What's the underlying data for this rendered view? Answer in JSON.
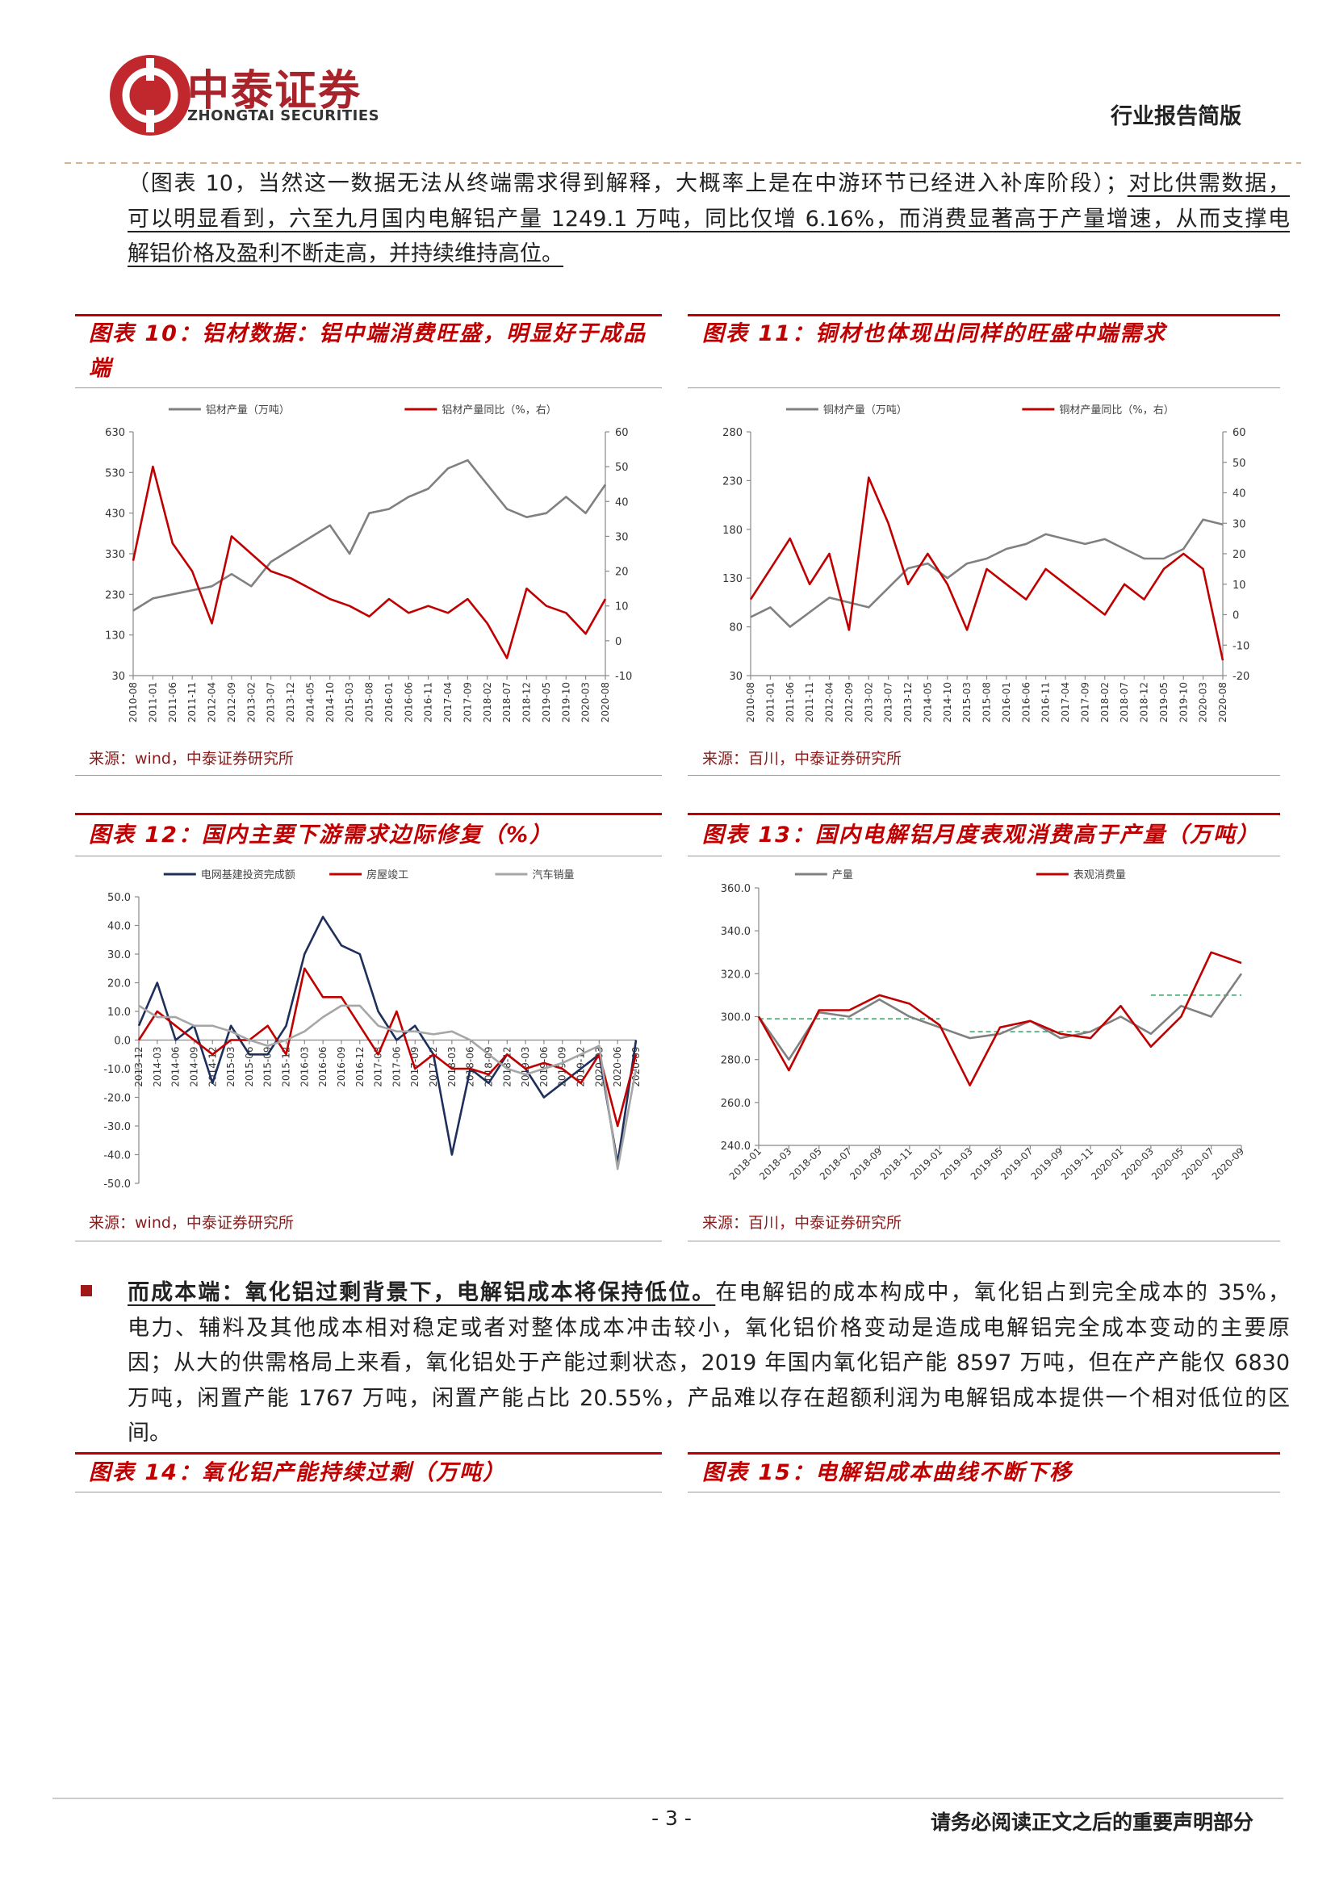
{
  "header": {
    "logo_cn": "中泰证券",
    "logo_en": "ZHONGTAI SECURITIES",
    "doc_type": "行业报告简版"
  },
  "paragraphs": [
    {
      "lines": [
        [
          {
            "text": "（图表 10，当然这一数据无法从终端需求得到解释，大概率上是在中游环节已经进入补库阶段）；"
          },
          {
            "text": "对比供需数据，",
            "underline": true
          }
        ],
        [
          {
            "text": "可以明显看到，六至九月国内电解铝产量 1249.1 万吨，同比仅增 6.16%，而消费显著高于产量增速，从而支撑电",
            "underline": true
          }
        ],
        [
          {
            "text": "解铝价格及盈利不断走高，并持续维持高位。",
            "underline": true
          }
        ]
      ]
    },
    {
      "bullet": true,
      "lines": [
        [
          {
            "text": "而成本端：氧化铝过剩背景下，电解铝成本将保持低位。",
            "bold": true,
            "underline": true
          },
          {
            "text": "在电解铝的成本构成中，氧化铝占到完全成本的 35%，"
          }
        ],
        [
          {
            "text": "电力、辅料及其他成本相对稳定或者对整体成本冲击较小，氧化铝价格变动是造成电解铝完全成本变动的主要原"
          }
        ],
        [
          {
            "text": "因；从大的供需格局上来看，氧化铝处于产能过剩状态，2019 年国内氧化铝产能 8597 万吨，但在产产能仅 6830"
          }
        ],
        [
          {
            "text": "万吨，闲置产能 1767 万吨，闲置产能占比 20.55%，产品难以存在超额利润为电解铝成本提供一个相对低位的区"
          }
        ],
        [
          {
            "text": "间。"
          }
        ]
      ]
    }
  ],
  "figures": [
    {
      "title": "图表 10：铝材数据：铝中端消费旺盛，明显好于成品端",
      "source": "来源：wind，中泰证券研究所",
      "chart": {
        "type": "line",
        "legend": "top",
        "categories": [
          "2010-08",
          "2011-01",
          "2011-06",
          "2011-11",
          "2012-04",
          "2012-09",
          "2013-02",
          "2013-07",
          "2013-12",
          "2014-05",
          "2014-10",
          "2015-03",
          "2015-08",
          "2016-01",
          "2016-06",
          "2016-11",
          "2017-04",
          "2017-09",
          "2018-02",
          "2018-07",
          "2018-12",
          "2019-05",
          "2019-10",
          "2020-03",
          "2020-08"
        ],
        "series": [
          {
            "name": "铝材产量（万吨）",
            "color": "#808080",
            "axis": "y",
            "values": [
              190,
              220,
              230,
              240,
              250,
              280,
              250,
              310,
              340,
              370,
              400,
              330,
              430,
              440,
              470,
              490,
              540,
              560,
              500,
              440,
              420,
              430,
              470,
              430,
              500
            ]
          },
          {
            "name": "铝材产量同比（%，右）",
            "color": "#c00000",
            "axis": "y2",
            "values": [
              23,
              50,
              28,
              20,
              5,
              30,
              25,
              20,
              18,
              15,
              12,
              10,
              7,
              12,
              8,
              10,
              8,
              12,
              5,
              -5,
              15,
              10,
              8,
              2,
              12
            ]
          }
        ],
        "ylim": [
          30,
          630
        ],
        "yticks": [
          30,
          130,
          230,
          330,
          430,
          530,
          630
        ],
        "y2lim": [
          -10,
          60
        ],
        "y2ticks": [
          -10,
          0,
          10,
          20,
          30,
          40,
          50,
          60
        ]
      }
    },
    {
      "title": "图表 11：铜材也体现出同样的旺盛中端需求",
      "source": "来源：百川，中泰证券研究所",
      "chart": {
        "type": "line",
        "legend": "top",
        "categories": [
          "2010-08",
          "2011-01",
          "2011-06",
          "2011-11",
          "2012-04",
          "2012-09",
          "2013-02",
          "2013-07",
          "2013-12",
          "2014-05",
          "2014-10",
          "2015-03",
          "2015-08",
          "2016-01",
          "2016-06",
          "2016-11",
          "2017-04",
          "2017-09",
          "2018-02",
          "2018-07",
          "2018-12",
          "2019-05",
          "2019-10",
          "2020-03",
          "2020-08"
        ],
        "series": [
          {
            "name": "铜材产量（万吨）",
            "color": "#808080",
            "axis": "y",
            "values": [
              90,
              100,
              80,
              95,
              110,
              105,
              100,
              120,
              140,
              145,
              130,
              145,
              150,
              160,
              165,
              175,
              170,
              165,
              170,
              160,
              150,
              150,
              160,
              190,
              185
            ]
          },
          {
            "name": "铜材产量同比（%，右）",
            "color": "#c00000",
            "axis": "y2",
            "values": [
              5,
              15,
              25,
              10,
              20,
              -5,
              45,
              30,
              10,
              20,
              10,
              -5,
              15,
              10,
              5,
              15,
              10,
              5,
              0,
              10,
              5,
              15,
              20,
              15,
              -15
            ]
          }
        ],
        "ylim": [
          30,
          280
        ],
        "yticks": [
          30,
          80,
          130,
          180,
          230,
          280
        ],
        "y2lim": [
          -20,
          60
        ],
        "y2ticks": [
          -20,
          -10,
          0,
          10,
          20,
          30,
          40,
          50,
          60
        ]
      }
    },
    {
      "title": "图表 12：国内主要下游需求边际修复（%）",
      "source": "来源：wind，中泰证券研究所",
      "chart": {
        "type": "line",
        "legend": "top",
        "categories": [
          "2013-12",
          "2014-03",
          "2014-06",
          "2014-09",
          "2014-12",
          "2015-03",
          "2015-06",
          "2015-09",
          "2015-12",
          "2016-03",
          "2016-06",
          "2016-09",
          "2016-12",
          "2017-03",
          "2017-06",
          "2017-09",
          "2017-12",
          "2018-03",
          "2018-06",
          "2018-09",
          "2018-12",
          "2019-03",
          "2019-06",
          "2019-09",
          "2019-12",
          "2020-03",
          "2020-06",
          "2020-09"
        ],
        "series": [
          {
            "name": "电网基建投资完成额",
            "color": "#1f2f5c",
            "axis": "y",
            "values": [
              5,
              20,
              0,
              5,
              -15,
              5,
              -5,
              -5,
              5,
              30,
              43,
              33,
              30,
              10,
              0,
              5,
              -5,
              -40,
              -10,
              -15,
              -5,
              -10,
              -20,
              -15,
              -10,
              -5,
              -43,
              0
            ]
          },
          {
            "name": "房屋竣工",
            "color": "#c00000",
            "axis": "y",
            "values": [
              0,
              10,
              5,
              0,
              -5,
              0,
              0,
              5,
              -5,
              25,
              15,
              15,
              5,
              -5,
              10,
              -10,
              -5,
              -10,
              -10,
              -12,
              -5,
              -10,
              -8,
              -10,
              -15,
              -5,
              -30,
              -5
            ]
          },
          {
            "name": "汽车销量",
            "color": "#a6a6a6",
            "axis": "y",
            "values": [
              12,
              8,
              8,
              5,
              5,
              3,
              0,
              -2,
              0,
              3,
              8,
              12,
              12,
              5,
              3,
              3,
              2,
              3,
              0,
              -5,
              -10,
              -12,
              -10,
              -8,
              -5,
              -2,
              -45,
              -10
            ]
          }
        ],
        "ylim": [
          -50,
          50
        ],
        "yticks": [
          {
            "value": -50,
            "label": "-50.0"
          },
          {
            "value": -40,
            "label": "-40.0"
          },
          {
            "value": -30,
            "label": "-30.0"
          },
          {
            "value": -20,
            "label": "-20.0"
          },
          {
            "value": -10,
            "label": "-10.0"
          },
          {
            "value": 0,
            "label": "0.0"
          },
          {
            "value": 10,
            "label": "10.0"
          },
          {
            "value": 20,
            "label": "20.0"
          },
          {
            "value": 30,
            "label": "30.0"
          },
          {
            "value": 40,
            "label": "40.0"
          },
          {
            "value": 50,
            "label": "50.0"
          }
        ]
      }
    },
    {
      "title": "图表 13：国内电解铝月度表观消费高于产量（万吨）",
      "source": "来源：百川，中泰证券研究所",
      "chart": {
        "type": "line",
        "legend": "top",
        "categories": [
          "2018-01",
          "2018-03",
          "2018-05",
          "2018-07",
          "2018-09",
          "2018-11",
          "2019-01",
          "2019-03",
          "2019-05",
          "2019-07",
          "2019-09",
          "2019-11",
          "2020-01",
          "2020-03",
          "2020-05",
          "2020-07",
          "2020-09"
        ],
        "series": [
          {
            "name": "产量",
            "color": "#808080",
            "axis": "y",
            "values": [
              300,
              280,
              302,
              300,
              308,
              300,
              295,
              290,
              292,
              298,
              290,
              293,
              300,
              292,
              305,
              300,
              320
            ]
          },
          {
            "name": "表观消费量",
            "color": "#c00000",
            "axis": "y",
            "values": [
              300,
              275,
              303,
              303,
              310,
              306,
              296,
              268,
              295,
              298,
              292,
              290,
              305,
              286,
              300,
              330,
              325
            ]
          }
        ],
        "reference_lines": [
          {
            "value": 299,
            "start": "2018-01",
            "end": "2019-01",
            "color": "#3a9e6a"
          },
          {
            "value": 293,
            "start": "2019-03",
            "end": "2019-11",
            "color": "#3a9e6a"
          },
          {
            "value": 310,
            "start": "2020-03",
            "end": "2020-09",
            "color": "#3a9e6a"
          }
        ],
        "ylim": [
          240,
          360
        ],
        "yticks": [
          {
            "value": 240,
            "label": "240.0"
          },
          {
            "value": 260,
            "label": "260.0"
          },
          {
            "value": 280,
            "label": "280.0"
          },
          {
            "value": 300,
            "label": "300.0"
          },
          {
            "value": 320,
            "label": "320.0"
          },
          {
            "value": 340,
            "label": "340.0"
          },
          {
            "value": 360,
            "label": "360.0"
          }
        ]
      }
    },
    {
      "title": "图表 14：氧化铝产能持续过剩（万吨）"
    },
    {
      "title": "图表 15：电解铝成本曲线不断下移"
    }
  ],
  "footer": {
    "page": "- 3 -",
    "notice": "请务必阅读正文之后的重要声明部分"
  }
}
